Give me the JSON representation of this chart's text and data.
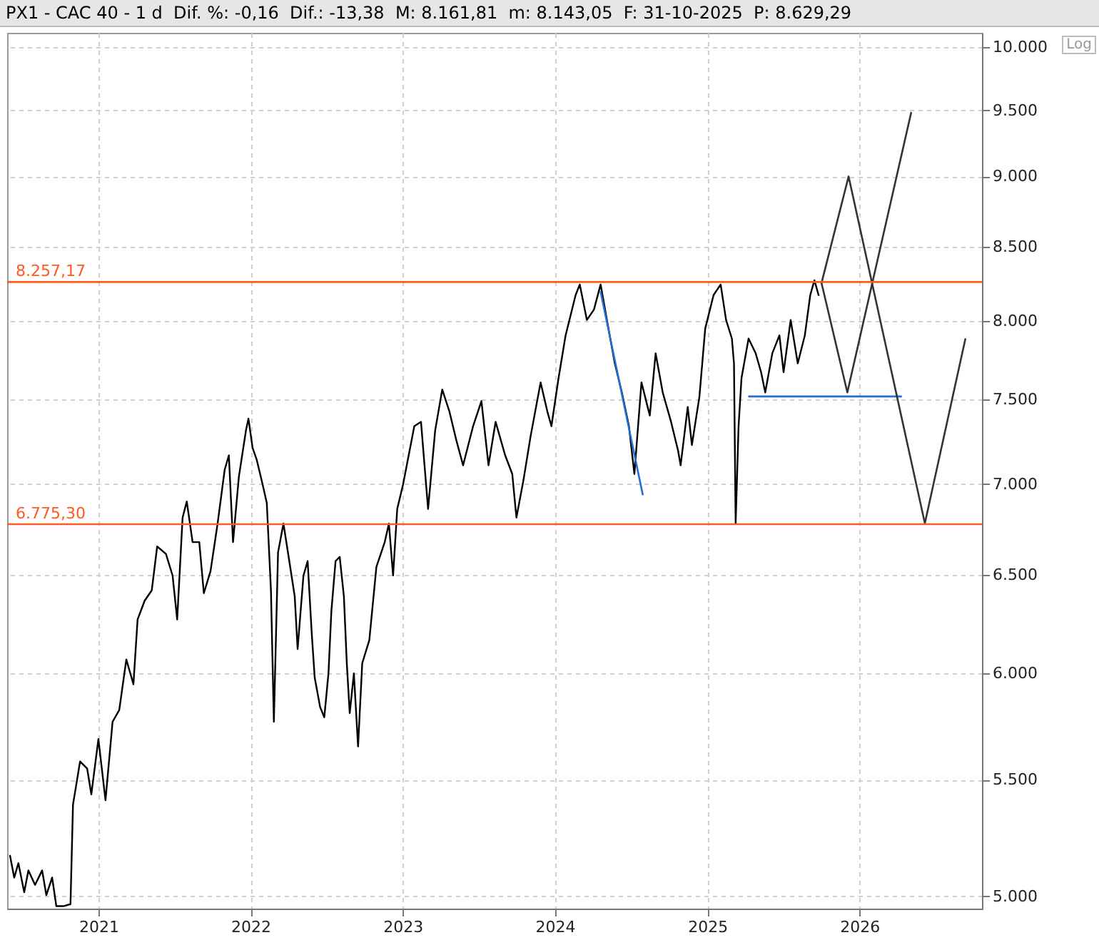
{
  "chart_data": {
    "type": "line",
    "title": "PX1 - CAC 40 - 1 d  Dif. %: -0,16  Dif.: -13,38  M: 8.161,81  m: 8.143,05  F: 31-10-2025  P: 8.629,29",
    "annotations": [
      "Log"
    ],
    "log": "y",
    "grid": true,
    "xlim": [
      "2020-05-27",
      "2026-10-22"
    ],
    "xticks": [
      "2021",
      "2022",
      "2023",
      "2024",
      "2025",
      "2026"
    ],
    "ylim": [
      4950,
      10120
    ],
    "yticks": [
      {
        "value": 5000,
        "label": "5.000"
      },
      {
        "value": 5500,
        "label": "5.500"
      },
      {
        "value": 6000,
        "label": "6.000"
      },
      {
        "value": 6500,
        "label": "6.500"
      },
      {
        "value": 7000,
        "label": "7.000"
      },
      {
        "value": 7500,
        "label": "7.500"
      },
      {
        "value": 8000,
        "label": "8.000"
      },
      {
        "value": 8500,
        "label": "8.500"
      },
      {
        "value": 9000,
        "label": "9.000"
      },
      {
        "value": 9500,
        "label": "9.500"
      },
      {
        "value": 10000,
        "label": "10.000"
      }
    ],
    "ref_lines": [
      {
        "axis": "y",
        "value": 8257.17,
        "label": "8.257,17",
        "color": "#ff5a1f"
      },
      {
        "axis": "y",
        "value": 6775.3,
        "label": "6.775,30",
        "color": "#ff5a1f"
      }
    ],
    "series": [
      {
        "color": "#000000",
        "x": [
          "2020-06-03",
          "2020-06-13",
          "2020-06-23",
          "2020-07-07",
          "2020-07-17",
          "2020-08-02",
          "2020-08-19",
          "2020-08-29",
          "2020-09-12",
          "2020-09-22",
          "2020-10-09",
          "2020-10-26",
          "2020-11-01",
          "2020-11-18",
          "2020-12-05",
          "2020-12-15",
          "2021-01-01",
          "2021-01-18",
          "2021-02-04",
          "2021-02-20",
          "2021-03-09",
          "2021-03-26",
          "2021-04-05",
          "2021-04-22",
          "2021-05-09",
          "2021-05-22",
          "2021-06-12",
          "2021-06-28",
          "2021-07-09",
          "2021-07-22",
          "2021-08-01",
          "2021-08-15",
          "2021-08-31",
          "2021-09-11",
          "2021-09-27",
          "2021-10-14",
          "2021-10-31",
          "2021-11-10",
          "2021-11-20",
          "2021-12-04",
          "2021-12-21",
          "2021-12-27",
          "2022-01-06",
          "2022-01-16",
          "2022-01-30",
          "2022-02-09",
          "2022-02-19",
          "2022-02-26",
          "2022-03-08",
          "2022-03-21",
          "2022-04-04",
          "2022-04-17",
          "2022-04-24",
          "2022-05-08",
          "2022-05-18",
          "2022-05-28",
          "2022-06-04",
          "2022-06-17",
          "2022-06-27",
          "2022-07-07",
          "2022-07-14",
          "2022-07-24",
          "2022-08-03",
          "2022-08-13",
          "2022-08-20",
          "2022-08-27",
          "2022-09-06",
          "2022-09-16",
          "2022-09-26",
          "2022-10-13",
          "2022-10-30",
          "2022-11-19",
          "2022-11-29",
          "2022-12-09",
          "2022-12-19",
          "2023-01-02",
          "2023-01-29",
          "2023-02-14",
          "2023-03-03",
          "2023-03-20",
          "2023-04-06",
          "2023-04-23",
          "2023-05-10",
          "2023-05-26",
          "2023-06-19",
          "2023-07-09",
          "2023-07-26",
          "2023-08-12",
          "2023-09-04",
          "2023-09-21",
          "2023-10-01",
          "2023-10-18",
          "2023-11-04",
          "2023-11-28",
          "2023-12-14",
          "2023-12-24",
          "2024-01-10",
          "2024-01-27",
          "2024-02-20",
          "2024-03-01",
          "2024-03-18",
          "2024-04-04",
          "2024-04-20",
          "2024-05-07",
          "2024-05-24",
          "2024-06-10",
          "2024-06-27",
          "2024-07-10",
          "2024-07-27",
          "2024-08-16",
          "2024-08-30",
          "2024-09-16",
          "2024-10-06",
          "2024-10-23",
          "2024-10-29",
          "2024-11-15",
          "2024-11-25",
          "2024-12-13",
          "2024-12-27",
          "2025-01-16",
          "2025-02-02",
          "2025-02-15",
          "2025-03-01",
          "2025-03-06",
          "2025-03-10",
          "2025-03-17",
          "2025-03-24",
          "2025-04-10",
          "2025-04-27",
          "2025-05-10",
          "2025-05-20",
          "2025-06-06",
          "2025-06-23",
          "2025-07-03",
          "2025-07-20",
          "2025-08-06",
          "2025-08-23",
          "2025-09-05",
          "2025-09-15",
          "2025-09-25"
        ],
        "values": [
          5168,
          5077,
          5137,
          5017,
          5107,
          5047,
          5107,
          5005,
          5077,
          4960,
          4960,
          4968,
          5388,
          5582,
          5550,
          5434,
          5685,
          5408,
          5766,
          5821,
          6067,
          5945,
          6268,
          6365,
          6419,
          6653,
          6613,
          6497,
          6268,
          6812,
          6902,
          6677,
          6677,
          6404,
          6520,
          6779,
          7084,
          7167,
          6677,
          7042,
          7314,
          7385,
          7210,
          7140,
          6999,
          6894,
          6419,
          5766,
          6621,
          6779,
          6574,
          6388,
          6119,
          6497,
          6574,
          6193,
          5977,
          5835,
          5787,
          5998,
          6312,
          6574,
          6597,
          6388,
          6048,
          5807,
          5998,
          5651,
          6048,
          6163,
          6543,
          6677,
          6779,
          6497,
          6860,
          6999,
          7340,
          7366,
          6860,
          7314,
          7563,
          7430,
          7254,
          7109,
          7340,
          7492,
          7109,
          7366,
          7167,
          7059,
          6812,
          7025,
          7280,
          7607,
          7430,
          7340,
          7633,
          7905,
          8169,
          8240,
          8005,
          8073,
          8240,
          7977,
          7726,
          7545,
          7340,
          7059,
          7607,
          7404,
          7790,
          7545,
          7366,
          7193,
          7109,
          7456,
          7228,
          7518,
          7949,
          8169,
          8240,
          8005,
          7884,
          7726,
          6779,
          7340,
          7633,
          7884,
          7790,
          7671,
          7545,
          7790,
          7905,
          7671,
          8005,
          7726,
          7905,
          8169,
          8269,
          8169
        ]
      },
      {
        "color": "#1f6fd6",
        "x": [
          "2024-04-20",
          "2024-07-30"
        ],
        "values": [
          8190,
          6942
        ]
      },
      {
        "color": "#1f6fd6",
        "x": [
          "2025-04-11",
          "2026-04-11"
        ],
        "values": [
          7520,
          7520
        ]
      },
      {
        "color": "#333333",
        "x": [
          "2025-10-02",
          "2025-12-06",
          "2026-06-07",
          "2026-09-12"
        ],
        "values": [
          8250,
          9000,
          6780,
          7880
        ]
      },
      {
        "color": "#333333",
        "x": [
          "2025-10-02",
          "2025-12-03",
          "2026-05-05"
        ],
        "values": [
          8250,
          7545,
          9480
        ]
      }
    ]
  }
}
